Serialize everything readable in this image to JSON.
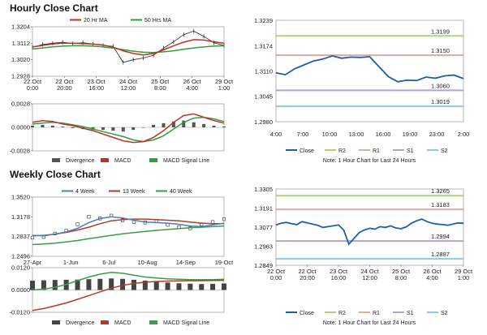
{
  "hourly_section": {
    "title": "Hourly Close Chart"
  },
  "weekly_section": {
    "title": "Weekly Close Chart"
  },
  "chart_data": [
    {
      "id": "hourly-price",
      "type": "line",
      "legend": [
        "20 Hr MA",
        "50 Hrs MA"
      ],
      "y_ticks": [
        "1.3204",
        "1.3112",
        "1.3020",
        "1.2928"
      ],
      "ylim": [
        1.2928,
        1.3204
      ],
      "x_ticks": [
        [
          "22 Oct",
          "0:00"
        ],
        [
          "22 Oct",
          "20:00"
        ],
        [
          "23 Oct",
          "16:00"
        ],
        [
          "24 Oct",
          "12:00"
        ],
        [
          "25 Oct",
          "8:00"
        ],
        [
          "26 Oct",
          "4:00"
        ],
        [
          "29 Oct",
          "1:00"
        ]
      ],
      "series": [
        {
          "name": "20 Hr MA",
          "color": "#c0302a",
          "values": [
            1.3092,
            1.31,
            1.3108,
            1.3113,
            1.3112,
            1.311,
            1.3108,
            1.3102,
            1.309,
            1.307,
            1.3055,
            1.3047,
            1.3055,
            1.3075,
            1.3098,
            1.3118,
            1.3132,
            1.313,
            1.312,
            1.3112
          ]
        },
        {
          "name": "50 Hrs MA",
          "color": "#2e9e3e",
          "values": [
            1.308,
            1.3086,
            1.3092,
            1.3096,
            1.3098,
            1.3098,
            1.3096,
            1.3092,
            1.3085,
            1.3076,
            1.3068,
            1.3062,
            1.306,
            1.3064,
            1.307,
            1.3078,
            1.3086,
            1.3092,
            1.3096,
            1.3098
          ]
        },
        {
          "name": "Close",
          "color": "#222222",
          "values": [
            1.309,
            1.3105,
            1.3112,
            1.3118,
            1.311,
            1.3115,
            1.3108,
            1.31,
            1.3095,
            1.3005,
            1.302,
            1.303,
            1.3045,
            1.3085,
            1.312,
            1.316,
            1.318,
            1.315,
            1.3115,
            1.31
          ]
        }
      ]
    },
    {
      "id": "hourly-macd",
      "type": "line",
      "legend": [
        "Divergence",
        "MACD",
        "MACD Signal Line"
      ],
      "y_ticks": [
        "0.0028",
        "0.0000",
        "-0.0028"
      ],
      "ylim": [
        -0.0028,
        0.0028
      ],
      "series": [
        {
          "name": "Divergence",
          "color": "#555555",
          "values": [
            0.0002,
            0.0003,
            0.0002,
            0.0001,
            -0.0001,
            -0.0002,
            -0.0003,
            -0.0003,
            -0.0004,
            -0.0005,
            -0.0003,
            0.0,
            0.0003,
            0.0005,
            0.0007,
            0.0008,
            0.0006,
            0.0004,
            0.0002,
            0.0001
          ]
        },
        {
          "name": "MACD",
          "color": "#c0302a",
          "values": [
            0.0006,
            0.0008,
            0.0007,
            0.0004,
            0.0002,
            -0.0001,
            -0.0004,
            -0.0008,
            -0.0012,
            -0.0016,
            -0.0018,
            -0.0017,
            -0.0012,
            -0.0004,
            0.0006,
            0.0014,
            0.0016,
            0.0012,
            0.0008,
            0.0005
          ]
        },
        {
          "name": "MACD Signal Line",
          "color": "#2e9e3e",
          "values": [
            0.0004,
            0.0005,
            0.0006,
            0.0005,
            0.0003,
            0.0001,
            -0.0002,
            -0.0005,
            -0.0008,
            -0.0011,
            -0.0015,
            -0.0017,
            -0.0015,
            -0.001,
            -0.0002,
            0.0006,
            0.0011,
            0.0012,
            0.001,
            0.0007
          ]
        }
      ]
    },
    {
      "id": "hourly-close",
      "type": "line",
      "y_ticks": [
        "1.3239",
        "1.3174",
        "1.3110",
        "1.3045",
        "1.2980"
      ],
      "ylim": [
        1.298,
        1.3239
      ],
      "x_ticks": [
        "4:00",
        "7:00",
        "10:00",
        "13:00",
        "16:00",
        "19:00",
        "23:00",
        "2:00"
      ],
      "levels": [
        {
          "name": "R2",
          "value": 1.3199,
          "label": "1.3199",
          "color": "#b5cf7b"
        },
        {
          "name": "R1",
          "value": 1.315,
          "label": "1.3150",
          "color": "#e9a9a1"
        },
        {
          "name": "S1",
          "value": 1.306,
          "label": "1.3060",
          "color": "#b4a3cc"
        },
        {
          "name": "S2",
          "value": 1.3019,
          "label": "1.3019",
          "color": "#86cde0"
        }
      ],
      "series": [
        {
          "name": "Close",
          "color": "#1d5fa8",
          "values": [
            1.3105,
            1.31,
            1.3115,
            1.3125,
            1.3135,
            1.314,
            1.3148,
            1.3142,
            1.3145,
            1.3144,
            1.3146,
            1.312,
            1.3095,
            1.3082,
            1.3086,
            1.3085,
            1.3094,
            1.3091,
            1.3097,
            1.3099,
            1.309
          ]
        }
      ],
      "legend": [
        "Close",
        "R2",
        "R1",
        "S1",
        "S2"
      ],
      "note": "Note: 1 Hour Chart for Last 24 Hours"
    },
    {
      "id": "weekly-price",
      "type": "line",
      "legend": [
        "4 Week",
        "13 Week",
        "40 Week"
      ],
      "y_ticks": [
        "1.3520",
        "1.3178",
        "1.2837",
        "1.2496"
      ],
      "ylim": [
        1.2496,
        1.352
      ],
      "x_ticks": [
        "27-Apr",
        "1-Jun",
        "6-Jul",
        "10-Aug",
        "14-Sep",
        "19-Oct"
      ],
      "series": [
        {
          "name": "4 Week",
          "color": "#4d7fbf",
          "values": [
            1.286,
            1.285,
            1.288,
            1.292,
            1.298,
            1.308,
            1.315,
            1.318,
            1.316,
            1.312,
            1.309,
            1.308,
            1.307,
            1.305,
            1.302,
            1.301,
            1.304,
            1.307
          ]
        },
        {
          "name": "13 Week",
          "color": "#b33a2a",
          "values": [
            1.285,
            1.286,
            1.288,
            1.291,
            1.295,
            1.3,
            1.306,
            1.311,
            1.313,
            1.314,
            1.314,
            1.313,
            1.312,
            1.311,
            1.309,
            1.307,
            1.306,
            1.306
          ]
        },
        {
          "name": "40 Week",
          "color": "#3c9c4a",
          "values": [
            1.27,
            1.271,
            1.2725,
            1.2745,
            1.277,
            1.28,
            1.283,
            1.286,
            1.2885,
            1.2905,
            1.2925,
            1.2945,
            1.296,
            1.2975,
            1.299,
            1.3,
            1.301,
            1.302
          ]
        },
        {
          "name": "Close",
          "color": "#222222",
          "values": [
            1.282,
            1.283,
            1.289,
            1.294,
            1.305,
            1.318,
            1.315,
            1.32,
            1.312,
            1.309,
            1.308,
            1.31,
            1.304,
            1.3,
            1.298,
            1.305,
            1.309,
            1.314
          ]
        }
      ]
    },
    {
      "id": "weekly-macd",
      "type": "line",
      "legend": [
        "Divergence",
        "MACD",
        "MACD Signal Line"
      ],
      "y_ticks": [
        "0.0120",
        "0.0000",
        "-0.0120"
      ],
      "ylim": [
        -0.012,
        0.012
      ],
      "series": [
        {
          "name": "Divergence",
          "color": "#444444",
          "values": [
            0.005,
            0.0052,
            0.0054,
            0.0055,
            0.0056,
            0.0058,
            0.006,
            0.0062,
            0.006,
            0.0055,
            0.005,
            0.0045,
            0.004,
            0.0036,
            0.0034,
            0.0032,
            0.0033,
            0.0035
          ]
        },
        {
          "name": "MACD",
          "color": "#b33a2a",
          "values": [
            -0.011,
            -0.01,
            -0.0085,
            -0.007,
            -0.005,
            -0.003,
            -0.001,
            0.001,
            0.0025,
            0.0035,
            0.0042,
            0.0046,
            0.0048,
            0.0049,
            0.005,
            0.005,
            0.0051,
            0.0052
          ]
        },
        {
          "name": "MACD Signal Line",
          "color": "#3c9c4a",
          "values": [
            0.0,
            0.0005,
            0.0015,
            0.003,
            0.005,
            0.007,
            0.0085,
            0.0095,
            0.009,
            0.008,
            0.007,
            0.0064,
            0.006,
            0.0058,
            0.0056,
            0.0055,
            0.0056,
            0.0058
          ]
        }
      ]
    },
    {
      "id": "weekly-close",
      "type": "line",
      "y_ticks": [
        "1.3305",
        "1.3191",
        "1.3077",
        "1.2963",
        "1.2849"
      ],
      "ylim": [
        1.2849,
        1.3305
      ],
      "x_ticks": [
        [
          "22 Oct",
          "0:00"
        ],
        [
          "22 Oct",
          "20:00"
        ],
        [
          "23 Oct",
          "16:00"
        ],
        [
          "24 Oct",
          "12:00"
        ],
        [
          "25 Oct",
          "8:00"
        ],
        [
          "26 Oct",
          "4:00"
        ],
        [
          "29 Oct",
          "1:00"
        ]
      ],
      "levels": [
        {
          "name": "R2",
          "value": 1.3265,
          "label": "1.3265",
          "color": "#b5cf7b"
        },
        {
          "name": "R1",
          "value": 1.3183,
          "label": "1.3183",
          "color": "#e9a9a1"
        },
        {
          "name": "S1",
          "value": 1.2994,
          "label": "1.2994",
          "color": "#b4a3cc"
        },
        {
          "name": "S2",
          "value": 1.2887,
          "label": "1.2887",
          "color": "#86cde0"
        }
      ],
      "series": [
        {
          "name": "Close",
          "color": "#1d5fa8",
          "values": [
            1.309,
            1.31,
            1.3105,
            1.3098,
            1.3092,
            1.311,
            1.3102,
            1.3095,
            1.3088,
            1.3075,
            1.308,
            1.3085,
            1.309,
            1.306,
            1.2975,
            1.301,
            1.3045,
            1.306,
            1.307,
            1.3065,
            1.308,
            1.3075,
            1.3085,
            1.3072,
            1.3068,
            1.3078,
            1.31,
            1.3115,
            1.3125,
            1.311,
            1.31,
            1.3095,
            1.3092,
            1.3088,
            1.3095,
            1.3102,
            1.31
          ]
        }
      ],
      "legend": [
        "Close",
        "R2",
        "R1",
        "S1",
        "S2"
      ],
      "note": "Note: 1 Hour Chart for Last 24 Hours"
    }
  ]
}
